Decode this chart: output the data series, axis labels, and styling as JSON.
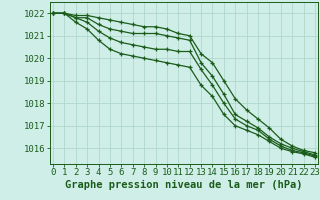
{
  "title": "Graphe pression niveau de la mer (hPa)",
  "background_color": "#d0eee8",
  "plot_bg_color": "#d0eee8",
  "grid_color": "#b0d8cc",
  "line_color": "#1a5c1a",
  "marker_color": "#1a5c1a",
  "x_values": [
    0,
    1,
    2,
    3,
    4,
    5,
    6,
    7,
    8,
    9,
    10,
    11,
    12,
    13,
    14,
    15,
    16,
    17,
    18,
    19,
    20,
    21,
    22,
    23
  ],
  "series": [
    [
      1022.0,
      1022.0,
      1021.9,
      1021.9,
      1021.8,
      1021.7,
      1021.6,
      1021.5,
      1021.4,
      1021.4,
      1021.3,
      1021.1,
      1021.0,
      1020.2,
      1019.8,
      1019.0,
      1018.2,
      1017.7,
      1017.3,
      1016.9,
      1016.4,
      1016.1,
      1015.9,
      1015.8
    ],
    [
      1022.0,
      1022.0,
      1021.8,
      1021.8,
      1021.5,
      1021.3,
      1021.2,
      1021.1,
      1021.1,
      1021.1,
      1021.0,
      1020.9,
      1020.8,
      1019.8,
      1019.2,
      1018.4,
      1017.5,
      1017.2,
      1016.9,
      1016.5,
      1016.2,
      1016.0,
      1015.85,
      1015.7
    ],
    [
      1022.0,
      1022.0,
      1021.8,
      1021.6,
      1021.2,
      1020.9,
      1020.7,
      1020.6,
      1020.5,
      1020.4,
      1020.4,
      1020.3,
      1020.3,
      1019.5,
      1018.8,
      1018.0,
      1017.3,
      1017.0,
      1016.8,
      1016.4,
      1016.1,
      1015.9,
      1015.8,
      1015.65
    ],
    [
      1022.0,
      1022.0,
      1021.6,
      1021.3,
      1020.8,
      1020.4,
      1020.2,
      1020.1,
      1020.0,
      1019.9,
      1019.8,
      1019.7,
      1019.6,
      1018.8,
      1018.3,
      1017.5,
      1017.0,
      1016.8,
      1016.6,
      1016.3,
      1016.0,
      1015.85,
      1015.75,
      1015.6
    ]
  ],
  "ylim": [
    1015.3,
    1022.5
  ],
  "yticks": [
    1016,
    1017,
    1018,
    1019,
    1020,
    1021,
    1022
  ],
  "xlim": [
    -0.3,
    23.3
  ],
  "xticks": [
    0,
    1,
    2,
    3,
    4,
    5,
    6,
    7,
    8,
    9,
    10,
    11,
    12,
    13,
    14,
    15,
    16,
    17,
    18,
    19,
    20,
    21,
    22,
    23
  ],
  "title_fontsize": 7.5,
  "tick_fontsize": 6.5,
  "linewidth": 0.9,
  "markersize": 3.5
}
